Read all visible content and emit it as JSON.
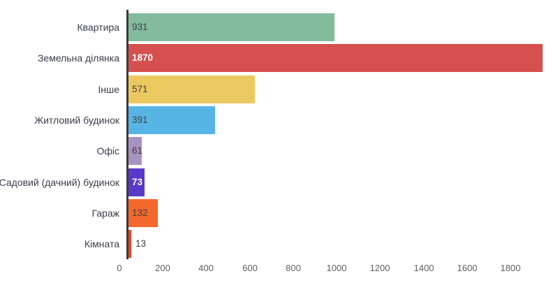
{
  "chart_data": {
    "type": "bar",
    "orientation": "horizontal",
    "title": "",
    "xlabel": "",
    "ylabel": "",
    "categories": [
      "Квартира",
      "Земельна ділянка",
      "Інше",
      "Житловий будинок",
      "Офіс",
      "Садовий (дачний) будинок",
      "Гараж",
      "Кімната"
    ],
    "values": [
      931,
      1870,
      571,
      391,
      61,
      73,
      132,
      13
    ],
    "bar_colors": [
      "#82bc9c",
      "#d5504e",
      "#ecc960",
      "#57b5e6",
      "#a893c0",
      "#5839c9",
      "#f4682d",
      "#e04a20"
    ],
    "value_label_colors": [
      "dark",
      "white",
      "dark",
      "dark",
      "dark",
      "white",
      "dark",
      "dark"
    ],
    "value_label_placement": [
      "inside",
      "inside",
      "inside",
      "inside",
      "inside",
      "inside",
      "inside",
      "outside"
    ],
    "xticks": [
      0,
      200,
      400,
      600,
      800,
      1000,
      1200,
      1400,
      1600,
      1800
    ],
    "xlim": [
      0,
      1900
    ],
    "grid": false,
    "legend": "none",
    "background": "#ffffff",
    "axis_color": "#3b3b3b",
    "category_label_color": "#3b3b4d",
    "tick_label_color": "#5f5f5f"
  }
}
